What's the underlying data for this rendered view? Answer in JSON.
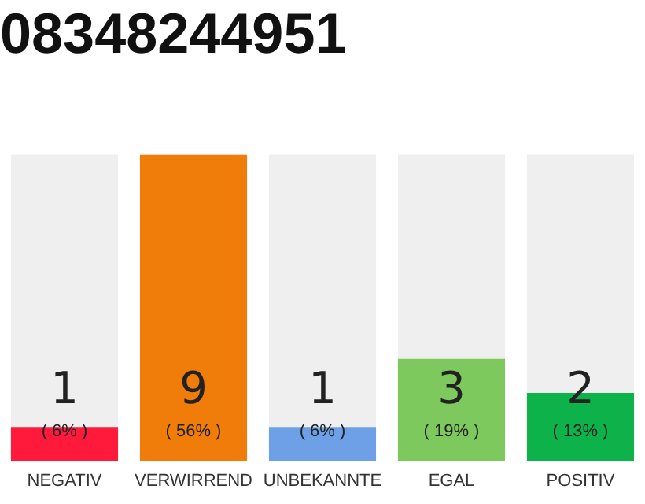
{
  "chart_data": {
    "type": "bar",
    "title": "08348244951",
    "categories": [
      "NEGATIV",
      "VERWIRREND",
      "UNBEKANNTE",
      "EGAL",
      "POSITIV"
    ],
    "values": [
      1,
      9,
      1,
      3,
      2
    ],
    "colors": [
      "#ff1a3c",
      "#f07d0a",
      "#6ea0e8",
      "#7dc95e",
      "#0db34a"
    ],
    "ylim": [
      0,
      9
    ],
    "data_labels": true,
    "grid": false,
    "legend": false,
    "annotations": [
      "( 6% )",
      "( 56% )",
      "( 6% )",
      "( 19% )",
      "( 13% )"
    ]
  }
}
